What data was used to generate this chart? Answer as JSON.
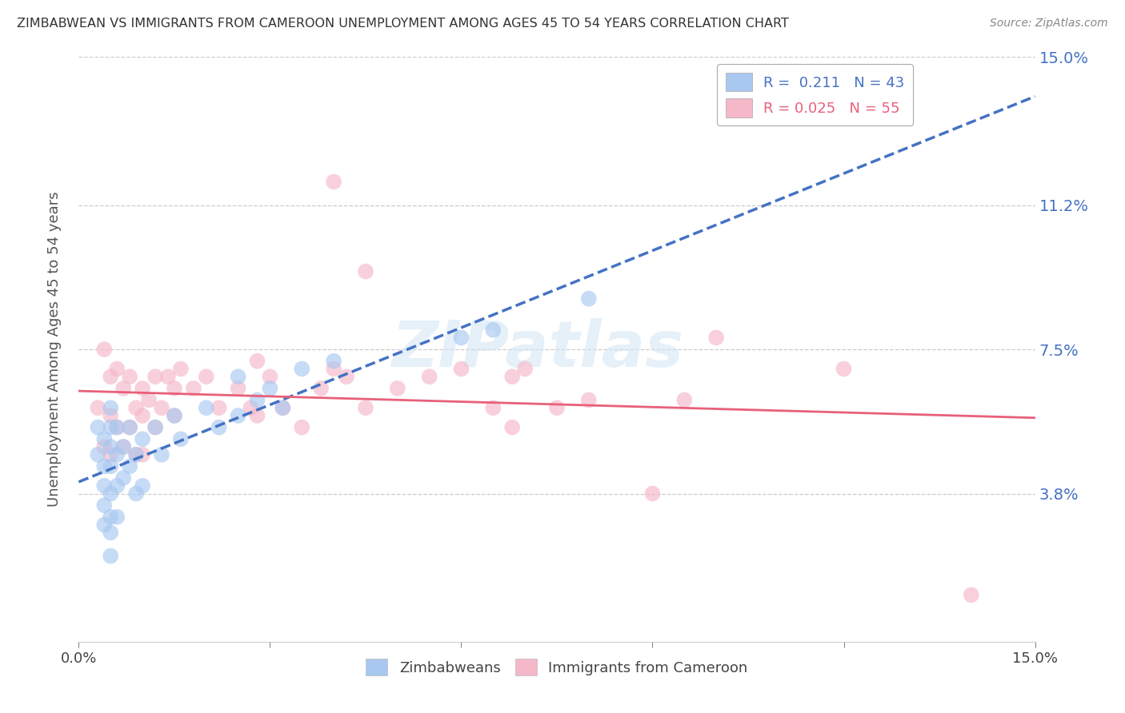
{
  "title": "ZIMBABWEAN VS IMMIGRANTS FROM CAMEROON UNEMPLOYMENT AMONG AGES 45 TO 54 YEARS CORRELATION CHART",
  "source": "Source: ZipAtlas.com",
  "ylabel": "Unemployment Among Ages 45 to 54 years",
  "xlim": [
    0.0,
    0.15
  ],
  "ylim": [
    0.0,
    0.15
  ],
  "ytick_labels_right": [
    "3.8%",
    "7.5%",
    "11.2%",
    "15.0%"
  ],
  "ytick_vals_right": [
    0.038,
    0.075,
    0.112,
    0.15
  ],
  "grid_color": "#cccccc",
  "background_color": "#ffffff",
  "blue_color": "#a8c8f0",
  "pink_color": "#f5b8c8",
  "blue_line_color": "#4472C4",
  "pink_line_color": "#e8607a",
  "R_blue": 0.211,
  "N_blue": 43,
  "R_pink": 0.025,
  "N_pink": 55,
  "watermark": "ZIPatlas",
  "legend_blue": "Zimbabweans",
  "legend_pink": "Immigrants from Cameroon",
  "zimbabwean_x": [
    0.003,
    0.003,
    0.004,
    0.004,
    0.004,
    0.004,
    0.004,
    0.005,
    0.005,
    0.005,
    0.005,
    0.005,
    0.005,
    0.005,
    0.005,
    0.006,
    0.006,
    0.006,
    0.006,
    0.007,
    0.007,
    0.008,
    0.008,
    0.009,
    0.009,
    0.01,
    0.01,
    0.012,
    0.013,
    0.015,
    0.016,
    0.02,
    0.022,
    0.025,
    0.025,
    0.028,
    0.03,
    0.032,
    0.035,
    0.04,
    0.06,
    0.065,
    0.08
  ],
  "zimbabwean_y": [
    0.055,
    0.048,
    0.052,
    0.045,
    0.04,
    0.035,
    0.03,
    0.06,
    0.055,
    0.05,
    0.045,
    0.038,
    0.032,
    0.028,
    0.022,
    0.055,
    0.048,
    0.04,
    0.032,
    0.05,
    0.042,
    0.055,
    0.045,
    0.048,
    0.038,
    0.052,
    0.04,
    0.055,
    0.048,
    0.058,
    0.052,
    0.06,
    0.055,
    0.068,
    0.058,
    0.062,
    0.065,
    0.06,
    0.07,
    0.072,
    0.078,
    0.08,
    0.088
  ],
  "cameroon_x": [
    0.003,
    0.004,
    0.004,
    0.005,
    0.005,
    0.005,
    0.006,
    0.006,
    0.007,
    0.007,
    0.008,
    0.008,
    0.009,
    0.009,
    0.01,
    0.01,
    0.01,
    0.011,
    0.012,
    0.012,
    0.013,
    0.014,
    0.015,
    0.015,
    0.016,
    0.018,
    0.02,
    0.022,
    0.025,
    0.027,
    0.028,
    0.028,
    0.03,
    0.032,
    0.035,
    0.038,
    0.04,
    0.042,
    0.045,
    0.05,
    0.055,
    0.06,
    0.065,
    0.068,
    0.068,
    0.07,
    0.075,
    0.08,
    0.09,
    0.095,
    0.04,
    0.045,
    0.1,
    0.12,
    0.14
  ],
  "cameroon_y": [
    0.06,
    0.075,
    0.05,
    0.068,
    0.058,
    0.048,
    0.07,
    0.055,
    0.065,
    0.05,
    0.068,
    0.055,
    0.06,
    0.048,
    0.065,
    0.058,
    0.048,
    0.062,
    0.068,
    0.055,
    0.06,
    0.068,
    0.065,
    0.058,
    0.07,
    0.065,
    0.068,
    0.06,
    0.065,
    0.06,
    0.072,
    0.058,
    0.068,
    0.06,
    0.055,
    0.065,
    0.07,
    0.068,
    0.06,
    0.065,
    0.068,
    0.07,
    0.06,
    0.068,
    0.055,
    0.07,
    0.06,
    0.062,
    0.038,
    0.062,
    0.118,
    0.095,
    0.078,
    0.07,
    0.012
  ]
}
